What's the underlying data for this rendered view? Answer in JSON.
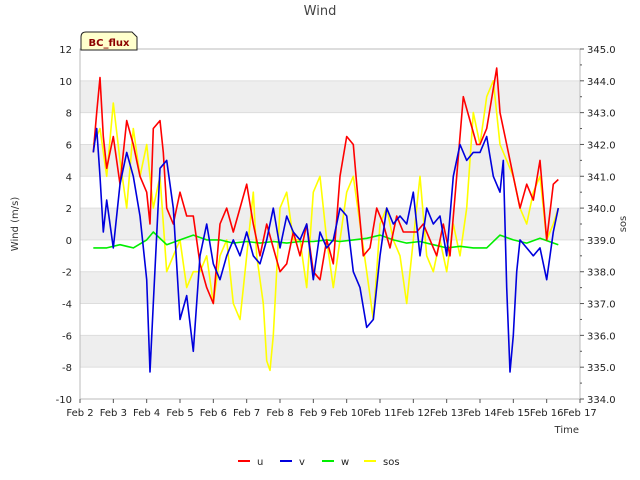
{
  "chart_data": {
    "type": "line",
    "title": "Wind",
    "badge": "BC_flux",
    "xlabel": "Time",
    "ylabel": "Wind (m/s)",
    "y2label": "sos",
    "x_ticks": [
      "Feb 2",
      "Feb 3",
      "Feb 4",
      "Feb 5",
      "Feb 6",
      "Feb 7",
      "Feb 8",
      "Feb 9",
      "Feb 10",
      "Feb 11",
      "Feb 12",
      "Feb 13",
      "Feb 14",
      "Feb 15",
      "Feb 16",
      "Feb 17"
    ],
    "xlim": [
      2,
      17
    ],
    "ylim": [
      -10,
      12
    ],
    "y_ticks": [
      "-10",
      "-8",
      "-6",
      "-4",
      "-2",
      "0",
      "2",
      "4",
      "6",
      "8",
      "10",
      "12"
    ],
    "y2lim": [
      334.0,
      345.0
    ],
    "y2_ticks": [
      "334.0",
      "335.0",
      "336.0",
      "337.0",
      "338.0",
      "339.0",
      "340.0",
      "341.0",
      "342.0",
      "343.0",
      "344.0",
      "345.0"
    ],
    "colors": {
      "u": "#ff0000",
      "v": "#0000dd",
      "w": "#00ee00",
      "sos": "#ffff00",
      "band": "#eeeeee"
    },
    "legend": [
      "u",
      "v",
      "w",
      "sos"
    ],
    "series": [
      {
        "name": "u",
        "axis": "left",
        "x": [
          2.4,
          2.5,
          2.6,
          2.7,
          2.8,
          3.0,
          3.2,
          3.4,
          3.6,
          3.8,
          4.0,
          4.1,
          4.2,
          4.4,
          4.5,
          4.6,
          4.8,
          5.0,
          5.2,
          5.4,
          5.6,
          5.8,
          6.0,
          6.2,
          6.4,
          6.6,
          6.8,
          7.0,
          7.2,
          7.4,
          7.6,
          7.8,
          8.0,
          8.2,
          8.4,
          8.6,
          8.8,
          9.0,
          9.2,
          9.4,
          9.6,
          9.8,
          10.0,
          10.2,
          10.3,
          10.5,
          10.7,
          10.9,
          11.1,
          11.3,
          11.5,
          11.7,
          11.9,
          12.1,
          12.3,
          12.5,
          12.7,
          12.9,
          13.1,
          13.3,
          13.5,
          13.7,
          13.9,
          14.0,
          14.2,
          14.4,
          14.5,
          14.6,
          14.8,
          15.0,
          15.2,
          15.4,
          15.6,
          15.8,
          16.0,
          16.2,
          16.35
        ],
        "values": [
          5.5,
          8.0,
          10.2,
          6.5,
          4.5,
          6.5,
          3.5,
          7.5,
          6.0,
          4.0,
          3.0,
          1.0,
          7.0,
          7.5,
          5.5,
          2.0,
          1.0,
          3.0,
          1.5,
          1.5,
          -1.5,
          -3.0,
          -4.0,
          1.0,
          2.0,
          0.5,
          2.0,
          3.5,
          1.0,
          -1.0,
          1.0,
          -0.5,
          -2.0,
          -1.5,
          0.5,
          -1.0,
          1.0,
          -2.0,
          -2.5,
          0.0,
          -1.5,
          4.0,
          6.5,
          6.0,
          3.5,
          -1.0,
          -0.5,
          2.0,
          1.0,
          -0.5,
          1.5,
          0.5,
          0.5,
          0.5,
          1.0,
          0.0,
          -1.0,
          1.0,
          -1.0,
          4.0,
          9.0,
          7.5,
          6.0,
          6.0,
          7.0,
          9.5,
          10.8,
          8.0,
          6.0,
          4.0,
          2.0,
          3.5,
          2.5,
          5.0,
          0.0,
          3.5,
          3.8
        ]
      },
      {
        "name": "v",
        "axis": "left",
        "x": [
          2.4,
          2.5,
          2.6,
          2.7,
          2.8,
          3.0,
          3.2,
          3.4,
          3.6,
          3.8,
          4.0,
          4.1,
          4.2,
          4.4,
          4.6,
          4.8,
          5.0,
          5.2,
          5.4,
          5.6,
          5.8,
          6.0,
          6.2,
          6.4,
          6.6,
          6.8,
          7.0,
          7.2,
          7.4,
          7.6,
          7.8,
          8.0,
          8.2,
          8.4,
          8.6,
          8.8,
          9.0,
          9.2,
          9.4,
          9.6,
          9.8,
          10.0,
          10.2,
          10.4,
          10.6,
          10.8,
          11.0,
          11.2,
          11.4,
          11.6,
          11.8,
          12.0,
          12.2,
          12.4,
          12.6,
          12.8,
          13.0,
          13.2,
          13.4,
          13.6,
          13.8,
          14.0,
          14.2,
          14.4,
          14.6,
          14.7,
          14.8,
          14.9,
          15.0,
          15.1,
          15.2,
          15.4,
          15.6,
          15.8,
          16.0,
          16.2,
          16.35
        ],
        "values": [
          5.5,
          7.0,
          4.0,
          0.5,
          2.5,
          -0.5,
          3.5,
          5.5,
          4.0,
          1.5,
          -2.5,
          -8.3,
          -4.0,
          4.5,
          5.0,
          2.0,
          -5.0,
          -3.5,
          -7.0,
          -1.0,
          1.0,
          -1.5,
          -2.5,
          -1.0,
          0.0,
          -1.0,
          0.5,
          -1.0,
          -1.5,
          0.0,
          2.0,
          -0.5,
          1.5,
          0.5,
          0.0,
          1.0,
          -2.5,
          0.5,
          -0.5,
          0.0,
          2.0,
          1.5,
          -2.0,
          -3.0,
          -5.5,
          -5.0,
          -1.0,
          2.0,
          1.0,
          1.5,
          1.0,
          3.0,
          -1.0,
          2.0,
          1.0,
          1.5,
          -1.0,
          4.0,
          6.0,
          5.0,
          5.5,
          5.5,
          6.5,
          4.0,
          3.0,
          5.0,
          -3.0,
          -8.3,
          -6.0,
          -2.0,
          0.0,
          -0.5,
          -1.0,
          -0.5,
          -2.5,
          0.5,
          2.0
        ]
      },
      {
        "name": "w",
        "axis": "left",
        "x": [
          2.4,
          2.8,
          3.2,
          3.6,
          4.0,
          4.2,
          4.6,
          5.0,
          5.4,
          5.8,
          6.2,
          6.6,
          7.0,
          7.4,
          7.8,
          8.2,
          8.6,
          9.0,
          9.4,
          9.8,
          10.2,
          10.6,
          11.0,
          11.4,
          11.8,
          12.2,
          12.6,
          13.0,
          13.4,
          13.8,
          14.2,
          14.6,
          15.0,
          15.4,
          15.8,
          16.35
        ],
        "values": [
          -0.5,
          -0.5,
          -0.3,
          -0.5,
          0.0,
          0.5,
          -0.3,
          0.0,
          0.3,
          0.0,
          0.0,
          -0.2,
          -0.1,
          -0.2,
          -0.1,
          -0.2,
          -0.1,
          -0.1,
          0.0,
          -0.1,
          0.0,
          0.1,
          0.3,
          0.0,
          -0.2,
          -0.1,
          -0.3,
          -0.5,
          -0.4,
          -0.5,
          -0.5,
          0.3,
          0.0,
          -0.2,
          0.1,
          -0.3
        ]
      },
      {
        "name": "sos",
        "axis": "right",
        "x": [
          2.4,
          2.6,
          2.8,
          3.0,
          3.2,
          3.4,
          3.6,
          3.8,
          4.0,
          4.2,
          4.4,
          4.6,
          4.8,
          5.0,
          5.2,
          5.4,
          5.6,
          5.8,
          6.0,
          6.2,
          6.4,
          6.6,
          6.8,
          7.0,
          7.2,
          7.3,
          7.5,
          7.6,
          7.7,
          7.8,
          8.0,
          8.2,
          8.4,
          8.6,
          8.8,
          9.0,
          9.2,
          9.4,
          9.6,
          9.8,
          10.0,
          10.2,
          10.4,
          10.6,
          10.8,
          11.0,
          11.2,
          11.4,
          11.6,
          11.8,
          12.0,
          12.2,
          12.4,
          12.6,
          12.8,
          13.0,
          13.2,
          13.4,
          13.6,
          13.8,
          14.0,
          14.2,
          14.4,
          14.6,
          14.8,
          15.0,
          15.2,
          15.4,
          15.6,
          15.8,
          16.0,
          16.2,
          16.35
        ],
        "values": [
          342.0,
          342.5,
          341.0,
          343.3,
          341.5,
          340.0,
          342.5,
          341.0,
          342.0,
          340.0,
          341.0,
          338.0,
          338.5,
          339.0,
          337.5,
          338.0,
          338.0,
          338.5,
          337.0,
          338.5,
          339.0,
          337.0,
          336.5,
          338.5,
          340.5,
          338.5,
          337.0,
          335.2,
          334.9,
          336.0,
          340.0,
          340.5,
          339.0,
          339.0,
          337.5,
          340.5,
          341.0,
          339.0,
          337.5,
          339.0,
          340.5,
          341.0,
          339.5,
          338.0,
          336.5,
          339.5,
          340.0,
          339.0,
          338.5,
          337.0,
          339.0,
          341.0,
          338.5,
          338.0,
          339.0,
          338.0,
          339.5,
          338.5,
          340.0,
          343.0,
          342.0,
          343.5,
          344.0,
          342.0,
          341.5,
          341.0,
          340.0,
          339.5,
          340.5,
          341.0,
          339.0,
          339.5,
          340.0
        ]
      }
    ]
  }
}
